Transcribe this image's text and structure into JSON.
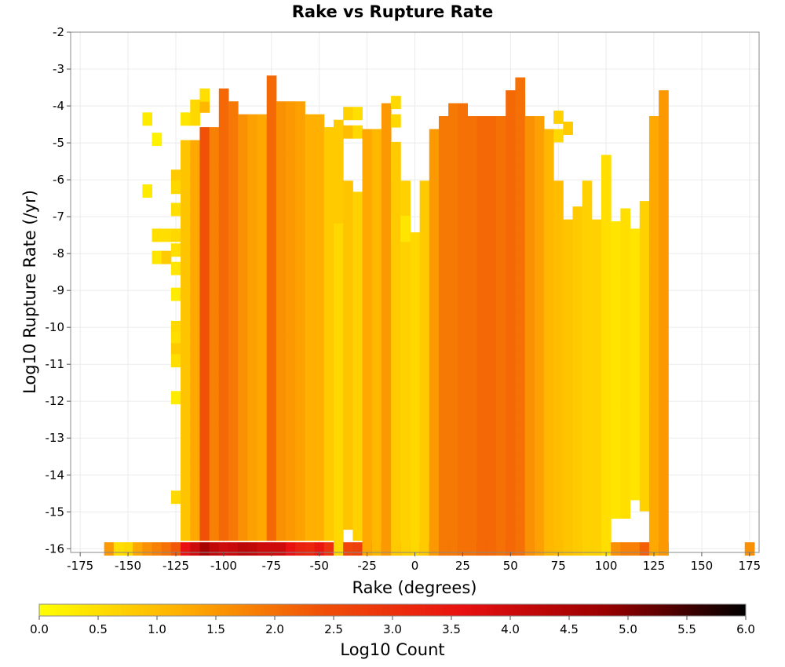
{
  "chart_data": {
    "type": "heatmap",
    "title": "Rake vs Rupture Rate",
    "xlabel": "Rake (degrees)",
    "ylabel": "Log10 Rupture Rate (/yr)",
    "xlim": [
      -180,
      180
    ],
    "ylim": [
      -16.1,
      -2
    ],
    "x_ticks": [
      -175,
      -150,
      -125,
      -100,
      -75,
      -50,
      -25,
      0,
      25,
      50,
      75,
      100,
      125,
      150,
      175
    ],
    "y_ticks": [
      -2,
      -3,
      -4,
      -5,
      -6,
      -7,
      -8,
      -9,
      -10,
      -11,
      -12,
      -13,
      -14,
      -15,
      -16
    ],
    "grid": true,
    "bin_width_x": 5,
    "bin_height_y": 0.35,
    "colorbar": {
      "label": "Log10 Count",
      "range": [
        0,
        6
      ],
      "ticks": [
        "0.0",
        "0.5",
        "1.0",
        "1.5",
        "2.0",
        "2.5",
        "3.0",
        "3.5",
        "4.0",
        "4.5",
        "5.0",
        "5.5",
        "6.0"
      ],
      "colors": [
        "#ffff00",
        "#ffb000",
        "#f05008",
        "#e81010",
        "#9a0000",
        "#000000"
      ]
    },
    "columns": [
      {
        "x": -160,
        "ranges": [
          [
            -16,
            -16,
            1.5
          ]
        ]
      },
      {
        "x": -155,
        "ranges": [
          [
            -16,
            -16,
            0.5
          ]
        ]
      },
      {
        "x": -150,
        "ranges": [
          [
            -16,
            -16,
            0.6
          ]
        ]
      },
      {
        "x": -145,
        "ranges": [
          [
            -16,
            -16,
            1.3
          ]
        ]
      },
      {
        "x": -140,
        "ranges": [
          [
            -16,
            -16,
            1.6
          ]
        ],
        "cells": [
          [
            -4.35,
            0.3
          ],
          [
            -6.3,
            0.3
          ]
        ]
      },
      {
        "x": -135,
        "ranges": [
          [
            -16,
            -16,
            1.8
          ]
        ],
        "cells": [
          [
            -4.9,
            0.2
          ],
          [
            -7.5,
            0.5
          ],
          [
            -8.1,
            0.4
          ]
        ]
      },
      {
        "x": -130,
        "ranges": [
          [
            -16,
            -16,
            2.0
          ]
        ],
        "cells": [
          [
            -7.5,
            0.5
          ],
          [
            -8.1,
            0.8
          ]
        ]
      },
      {
        "x": -125,
        "ranges": [
          [
            -16,
            -16,
            2.3
          ]
        ],
        "cells": [
          [
            -5.9,
            0.8
          ],
          [
            -6.2,
            0.6
          ],
          [
            -6.8,
            0.5
          ],
          [
            -7.5,
            0.6
          ],
          [
            -7.9,
            0.5
          ],
          [
            -8.4,
            0.4
          ],
          [
            -9.1,
            0.3
          ],
          [
            -10,
            0.6
          ],
          [
            -10.3,
            0.5
          ],
          [
            -10.6,
            0.8
          ],
          [
            -10.9,
            0.5
          ],
          [
            -11.9,
            0.3
          ],
          [
            -14.6,
            0.6
          ]
        ]
      },
      {
        "x": -120,
        "ranges": [
          [
            -16,
            -16,
            3.6
          ],
          [
            -15.6,
            -4.9,
            0.9
          ]
        ],
        "cells": [
          [
            -4.35,
            0.4
          ]
        ]
      },
      {
        "x": -115,
        "ranges": [
          [
            -16,
            -16,
            4.0
          ],
          [
            -15.6,
            -4.9,
            1.3
          ]
        ],
        "cells": [
          [
            -4.35,
            0.6
          ],
          [
            -4.0,
            0.6
          ]
        ]
      },
      {
        "x": -110,
        "ranges": [
          [
            -16,
            -16,
            4.6
          ],
          [
            -15.6,
            -4.7,
            2.4
          ]
        ],
        "cells": [
          [
            -4.0,
            1.1
          ],
          [
            -3.7,
            0.5
          ]
        ]
      },
      {
        "x": -105,
        "ranges": [
          [
            -16,
            -16,
            4.2
          ],
          [
            -15.6,
            -4.6,
            1.8
          ]
        ]
      },
      {
        "x": -100,
        "ranges": [
          [
            -16,
            -16,
            4.0
          ],
          [
            -15.6,
            -3.7,
            2.1
          ]
        ]
      },
      {
        "x": -95,
        "ranges": [
          [
            -16,
            -16,
            4.1
          ],
          [
            -15.6,
            -4.0,
            1.9
          ]
        ]
      },
      {
        "x": -90,
        "ranges": [
          [
            -16,
            -16,
            4.3
          ],
          [
            -15.6,
            -4.2,
            1.6
          ]
        ]
      },
      {
        "x": -85,
        "ranges": [
          [
            -16,
            -16,
            4.2
          ],
          [
            -15.6,
            -4.2,
            1.4
          ]
        ]
      },
      {
        "x": -80,
        "ranges": [
          [
            -16,
            -16,
            4.0
          ],
          [
            -15.6,
            -4.2,
            1.3
          ]
        ]
      },
      {
        "x": -75,
        "ranges": [
          [
            -16,
            -16,
            4.0
          ],
          [
            -15.6,
            -3.3,
            2.1
          ]
        ]
      },
      {
        "x": -70,
        "ranges": [
          [
            -16,
            -16,
            4.0
          ],
          [
            -15.6,
            -3.9,
            1.6
          ]
        ]
      },
      {
        "x": -65,
        "ranges": [
          [
            -16,
            -16,
            3.6
          ],
          [
            -15.6,
            -4.0,
            1.5
          ]
        ]
      },
      {
        "x": -60,
        "ranges": [
          [
            -16,
            -16,
            3.3
          ],
          [
            -15.6,
            -4.0,
            1.4
          ]
        ]
      },
      {
        "x": -55,
        "ranges": [
          [
            -16,
            -16,
            3.2
          ],
          [
            -15.6,
            -4.3,
            1.2
          ]
        ]
      },
      {
        "x": -50,
        "ranges": [
          [
            -16,
            -16,
            3.5
          ],
          [
            -15.6,
            -4.2,
            1.2
          ]
        ]
      },
      {
        "x": -45,
        "ranges": [
          [
            -16,
            -16,
            3.0
          ],
          [
            -15.6,
            -4.5,
            0.8
          ]
        ]
      },
      {
        "x": -40,
        "ranges": [
          [
            -16,
            -16,
            2.6
          ],
          [
            -16,
            -6.0,
            0.6
          ],
          [
            -7.0,
            -4.3,
            0.8
          ]
        ]
      },
      {
        "x": -35,
        "ranges": [
          [
            -16,
            -16,
            2.6
          ],
          [
            -15.3,
            -6.0,
            0.9
          ]
        ],
        "cells": [
          [
            -4.2,
            0.7
          ],
          [
            -4.7,
            1.0
          ]
        ]
      },
      {
        "x": -30,
        "ranges": [
          [
            -16,
            -16,
            2.7
          ],
          [
            -15.6,
            -6.5,
            0.7
          ]
        ],
        "cells": [
          [
            -4.2,
            0.5
          ],
          [
            -4.7,
            0.6
          ]
        ]
      },
      {
        "x": -25,
        "ranges": [
          [
            -16,
            -16,
            2.7
          ],
          [
            -16,
            -4.5,
            1.3
          ]
        ]
      },
      {
        "x": -20,
        "ranges": [
          [
            -16,
            -16,
            2.8
          ],
          [
            -16,
            -4.5,
            1.1
          ]
        ]
      },
      {
        "x": -15,
        "ranges": [
          [
            -16,
            -16,
            2.8
          ],
          [
            -16,
            -3.9,
            1.5
          ]
        ]
      },
      {
        "x": -10,
        "ranges": [
          [
            -16,
            -16,
            2.4
          ],
          [
            -16,
            -5.0,
            0.8
          ]
        ],
        "cells": [
          [
            -3.9,
            0.6
          ],
          [
            -4.4,
            0.6
          ]
        ]
      },
      {
        "x": -5,
        "ranges": [
          [
            -16,
            -16,
            2.2
          ],
          [
            -16,
            -6.0,
            0.7
          ],
          [
            -7.5,
            -7.1,
            0.4
          ]
        ]
      },
      {
        "x": 0,
        "ranges": [
          [
            -16,
            -16,
            2.2
          ],
          [
            -16,
            -7.5,
            0.6
          ]
        ]
      },
      {
        "x": 5,
        "ranges": [
          [
            -16,
            -16,
            2.3
          ],
          [
            -16,
            -6.0,
            0.8
          ]
        ]
      },
      {
        "x": 10,
        "ranges": [
          [
            -16,
            -16,
            2.4
          ],
          [
            -16,
            -4.5,
            1.5
          ]
        ]
      },
      {
        "x": 15,
        "ranges": [
          [
            -16,
            -16,
            2.5
          ],
          [
            -16,
            -4.2,
            1.9
          ]
        ]
      },
      {
        "x": 20,
        "ranges": [
          [
            -16,
            -16,
            2.5
          ],
          [
            -16,
            -4.0,
            1.9
          ]
        ]
      },
      {
        "x": 25,
        "ranges": [
          [
            -16,
            -16,
            2.5
          ],
          [
            -16,
            -4.0,
            2.0
          ]
        ]
      },
      {
        "x": 30,
        "ranges": [
          [
            -16,
            -16,
            2.8
          ],
          [
            -16,
            -4.2,
            2.0
          ]
        ]
      },
      {
        "x": 35,
        "ranges": [
          [
            -16,
            -16,
            2.9
          ],
          [
            -16,
            -4.2,
            2.1
          ]
        ]
      },
      {
        "x": 40,
        "ranges": [
          [
            -16,
            -16,
            2.7
          ],
          [
            -16,
            -4.2,
            2.1
          ]
        ]
      },
      {
        "x": 45,
        "ranges": [
          [
            -16,
            -16,
            2.6
          ],
          [
            -16,
            -4.2,
            2.0
          ]
        ]
      },
      {
        "x": 50,
        "ranges": [
          [
            -16,
            -16,
            2.7
          ],
          [
            -16,
            -3.6,
            2.1
          ]
        ]
      },
      {
        "x": 55,
        "ranges": [
          [
            -16,
            -16,
            2.5
          ],
          [
            -16,
            -3.4,
            2.0
          ]
        ]
      },
      {
        "x": 60,
        "ranges": [
          [
            -16,
            -16,
            2.4
          ],
          [
            -16,
            -4.3,
            1.6
          ]
        ]
      },
      {
        "x": 65,
        "ranges": [
          [
            -16,
            -16,
            2.2
          ],
          [
            -16,
            -4.3,
            1.4
          ]
        ]
      },
      {
        "x": 70,
        "ranges": [
          [
            -16,
            -16,
            1.8
          ],
          [
            -16,
            -4.5,
            1.1
          ]
        ]
      },
      {
        "x": 75,
        "ranges": [
          [
            -16,
            -16,
            1.6
          ],
          [
            -16,
            -6.0,
            1.0
          ]
        ],
        "cells": [
          [
            -4.3,
            0.7
          ],
          [
            -4.8,
            0.6
          ]
        ]
      },
      {
        "x": 80,
        "ranges": [
          [
            -16,
            -16,
            1.3
          ],
          [
            -16,
            -7.0,
            0.9
          ]
        ],
        "cells": [
          [
            -4.6,
            0.8
          ]
        ]
      },
      {
        "x": 85,
        "ranges": [
          [
            -16,
            -16,
            1.0
          ],
          [
            -16,
            -6.7,
            0.8
          ]
        ]
      },
      {
        "x": 90,
        "ranges": [
          [
            -16,
            -16,
            1.2
          ],
          [
            -16,
            -6.0,
            0.7
          ]
        ]
      },
      {
        "x": 95,
        "ranges": [
          [
            -16,
            -16,
            1.3
          ],
          [
            -16,
            -7.0,
            0.7
          ]
        ]
      },
      {
        "x": 100,
        "ranges": [
          [
            -16,
            -16,
            1.8
          ],
          [
            -16,
            -5.5,
            0.5
          ]
        ]
      },
      {
        "x": 105,
        "ranges": [
          [
            -16,
            -16,
            1.6
          ],
          [
            -15,
            -7.0,
            0.4
          ]
        ]
      },
      {
        "x": 110,
        "ranges": [
          [
            -16,
            -16,
            1.8
          ],
          [
            -15,
            -6.8,
            0.5
          ]
        ]
      },
      {
        "x": 115,
        "ranges": [
          [
            -16,
            -16,
            1.8
          ],
          [
            -14.5,
            -7.5,
            0.4
          ]
        ]
      },
      {
        "x": 120,
        "ranges": [
          [
            -16,
            -16,
            2.2
          ],
          [
            -14.8,
            -6.6,
            0.7
          ]
        ]
      },
      {
        "x": 125,
        "ranges": [
          [
            -16,
            -16,
            2.6
          ],
          [
            -16,
            -4.4,
            1.3
          ]
        ]
      },
      {
        "x": 130,
        "ranges": [
          [
            -16,
            -16,
            2.8
          ],
          [
            -16,
            -3.7,
            1.5
          ]
        ]
      },
      {
        "x": 175,
        "ranges": [
          [
            -16,
            -16,
            1.6
          ]
        ]
      }
    ]
  }
}
